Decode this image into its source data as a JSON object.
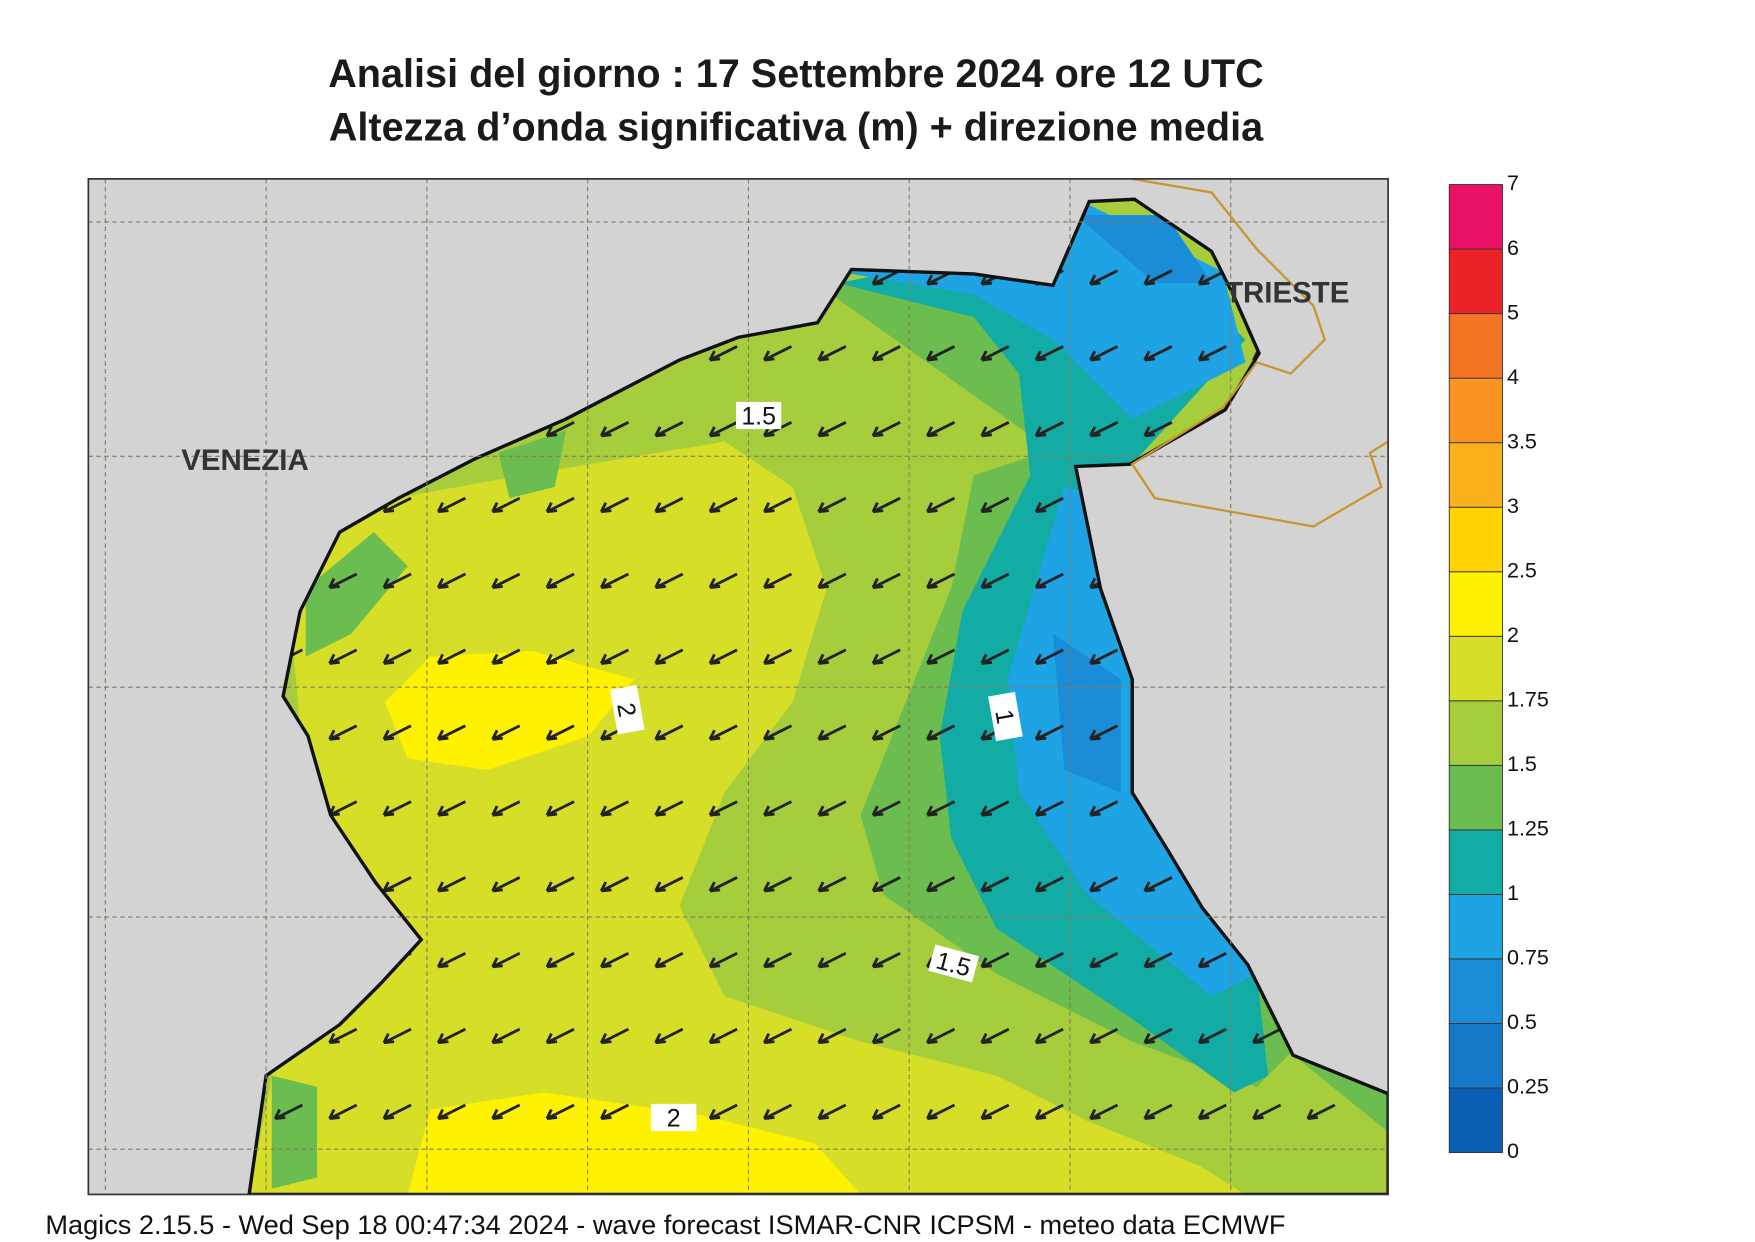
{
  "header": {
    "title": "Analisi del giorno :  17 Settembre 2024   ore 12 UTC",
    "subtitle": "Altezza d’onda significativa (m) + direzione media"
  },
  "map": {
    "cities": [
      "VENEZIA",
      "TRIESTE"
    ],
    "contour_labels": [
      1.5,
      2,
      1,
      1.5,
      2
    ]
  },
  "legend": {
    "levels": [
      0,
      0.25,
      0.5,
      0.75,
      1,
      1.25,
      1.5,
      1.75,
      2,
      2.5,
      3,
      3.5,
      4,
      5,
      6,
      7
    ],
    "colors": [
      "#0a5fb4",
      "#1578c8",
      "#1a8cd8",
      "#1ea3e4",
      "#12aca4",
      "#6abd4e",
      "#a6cd3c",
      "#d6de28",
      "#fff200",
      "#ffd400",
      "#fbb11c",
      "#f8941f",
      "#f47524",
      "#ec2227",
      "#ea1167"
    ]
  },
  "footer": "Magics 2.15.5 - Wed Sep 18 00:47:34 2024 - wave forecast  ISMAR-CNR  ICPSM - meteo data    ECMWF"
}
